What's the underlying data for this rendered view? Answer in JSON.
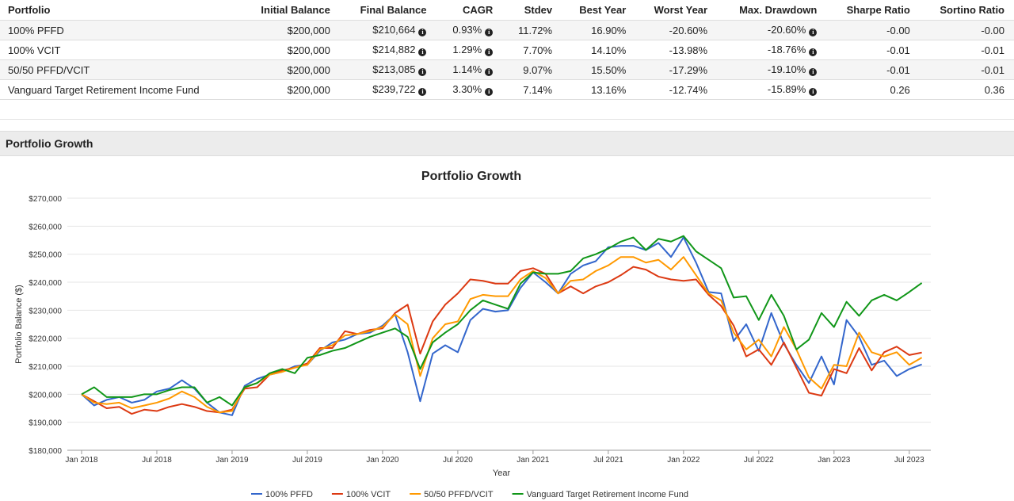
{
  "table": {
    "header": [
      "Portfolio",
      "Initial Balance",
      "Final Balance",
      "CAGR",
      "Stdev",
      "Best Year",
      "Worst Year",
      "Max. Drawdown",
      "Sharpe Ratio",
      "Sortino Ratio"
    ],
    "rows": [
      [
        "100% PFFD",
        "$200,000",
        "$210,664",
        "0.93%",
        "11.72%",
        "16.90%",
        "-20.60%",
        "-20.60%",
        "-0.00",
        "-0.00"
      ],
      [
        "100% VCIT",
        "$200,000",
        "$214,882",
        "1.29%",
        "7.70%",
        "14.10%",
        "-13.98%",
        "-18.76%",
        "-0.01",
        "-0.01"
      ],
      [
        "50/50 PFFD/VCIT",
        "$200,000",
        "$213,085",
        "1.14%",
        "9.07%",
        "15.50%",
        "-17.29%",
        "-19.10%",
        "-0.01",
        "-0.01"
      ],
      [
        "Vanguard Target Retirement Income Fund",
        "$200,000",
        "$239,722",
        "3.30%",
        "7.14%",
        "13.16%",
        "-12.74%",
        "-15.89%",
        "0.26",
        "0.36"
      ]
    ]
  },
  "section": {
    "title": "Portfolio Growth"
  },
  "chart_data": {
    "type": "line",
    "title": "Portfolio Growth",
    "x_label": "Year",
    "y_label": "Portfolio Balance ($)",
    "x": [
      "2018-01",
      "2018-02",
      "2018-03",
      "2018-04",
      "2018-05",
      "2018-06",
      "2018-07",
      "2018-08",
      "2018-09",
      "2018-10",
      "2018-11",
      "2018-12",
      "2019-01",
      "2019-02",
      "2019-03",
      "2019-04",
      "2019-05",
      "2019-06",
      "2019-07",
      "2019-08",
      "2019-09",
      "2019-10",
      "2019-11",
      "2019-12",
      "2020-01",
      "2020-02",
      "2020-03",
      "2020-04",
      "2020-05",
      "2020-06",
      "2020-07",
      "2020-08",
      "2020-09",
      "2020-10",
      "2020-11",
      "2020-12",
      "2021-01",
      "2021-02",
      "2021-03",
      "2021-04",
      "2021-05",
      "2021-06",
      "2021-07",
      "2021-08",
      "2021-09",
      "2021-10",
      "2021-11",
      "2021-12",
      "2022-01",
      "2022-02",
      "2022-03",
      "2022-04",
      "2022-05",
      "2022-06",
      "2022-07",
      "2022-08",
      "2022-09",
      "2022-10",
      "2022-11",
      "2022-12",
      "2023-01",
      "2023-02",
      "2023-03",
      "2023-04",
      "2023-05",
      "2023-06",
      "2023-07",
      "2023-08"
    ],
    "xticks": [
      {
        "value": "2018-01",
        "label": "Jan 2018"
      },
      {
        "value": "2018-07",
        "label": "Jul 2018"
      },
      {
        "value": "2019-01",
        "label": "Jan 2019"
      },
      {
        "value": "2019-07",
        "label": "Jul 2019"
      },
      {
        "value": "2020-01",
        "label": "Jan 2020"
      },
      {
        "value": "2020-07",
        "label": "Jul 2020"
      },
      {
        "value": "2021-01",
        "label": "Jan 2021"
      },
      {
        "value": "2021-07",
        "label": "Jul 2021"
      },
      {
        "value": "2022-01",
        "label": "Jan 2022"
      },
      {
        "value": "2022-07",
        "label": "Jul 2022"
      },
      {
        "value": "2023-01",
        "label": "Jan 2023"
      },
      {
        "value": "2023-07",
        "label": "Jul 2023"
      }
    ],
    "ylim": [
      180000,
      270000
    ],
    "yticks": [
      {
        "value": 180000,
        "label": "$180,000"
      },
      {
        "value": 190000,
        "label": "$190,000"
      },
      {
        "value": 200000,
        "label": "$200,000"
      },
      {
        "value": 210000,
        "label": "$210,000"
      },
      {
        "value": 220000,
        "label": "$220,000"
      },
      {
        "value": 230000,
        "label": "$230,000"
      },
      {
        "value": 240000,
        "label": "$240,000"
      },
      {
        "value": 250000,
        "label": "$250,000"
      },
      {
        "value": 260000,
        "label": "$260,000"
      },
      {
        "value": 270000,
        "label": "$270,000"
      }
    ],
    "grid": true,
    "legend": "bottom",
    "series": [
      {
        "name": "100% PFFD",
        "color": "#3366cc",
        "values": [
          200000,
          196000,
          198000,
          199000,
          197000,
          198000,
          201000,
          202000,
          205000,
          202000,
          197000,
          193500,
          192500,
          203000,
          205500,
          207000,
          208000,
          210000,
          210500,
          215500,
          218500,
          219500,
          221500,
          222000,
          224500,
          228500,
          215000,
          197500,
          214500,
          217500,
          215000,
          226500,
          230500,
          229500,
          230000,
          238000,
          243500,
          240000,
          236000,
          243000,
          246000,
          247500,
          252500,
          253000,
          253000,
          251500,
          254000,
          249000,
          256000,
          247000,
          236500,
          236000,
          219000,
          225000,
          215500,
          229000,
          218000,
          210500,
          204000,
          213500,
          203500,
          226500,
          220500,
          210500,
          212000,
          206500,
          209000,
          210664
        ]
      },
      {
        "name": "100% VCIT",
        "color": "#dc3912",
        "values": [
          200000,
          197500,
          195000,
          195500,
          193000,
          194500,
          194000,
          195500,
          196500,
          195500,
          194000,
          193500,
          194500,
          202000,
          202500,
          207000,
          208500,
          209500,
          211000,
          216500,
          216500,
          222500,
          221500,
          223000,
          223500,
          229000,
          232000,
          214500,
          226000,
          232000,
          236000,
          241000,
          240500,
          239500,
          239500,
          244000,
          245000,
          243000,
          236000,
          238500,
          236000,
          238500,
          240000,
          242500,
          245500,
          244500,
          242000,
          241000,
          240500,
          241000,
          235500,
          231500,
          224500,
          213500,
          216000,
          210500,
          218500,
          209500,
          200500,
          199500,
          209000,
          207500,
          216500,
          208500,
          215000,
          217000,
          214000,
          214882
        ]
      },
      {
        "name": "50/50 PFFD/VCIT",
        "color": "#ff9900",
        "values": [
          200000,
          197000,
          196500,
          197000,
          195000,
          196000,
          197000,
          198500,
          201000,
          199000,
          195500,
          193500,
          194000,
          202500,
          204000,
          207000,
          208000,
          209500,
          210500,
          216000,
          217500,
          221000,
          221500,
          222500,
          224000,
          228500,
          225000,
          206500,
          220000,
          225000,
          226000,
          234000,
          235500,
          235000,
          235000,
          241000,
          244000,
          241500,
          236000,
          240500,
          241000,
          244000,
          246000,
          249000,
          249000,
          247000,
          248000,
          244500,
          249000,
          242500,
          236000,
          233500,
          222000,
          216000,
          219500,
          213500,
          224000,
          216000,
          206000,
          202000,
          210500,
          210000,
          222000,
          215000,
          213500,
          215000,
          210500,
          213085
        ]
      },
      {
        "name": "Vanguard Target Retirement Income Fund",
        "color": "#109618",
        "values": [
          200000,
          202500,
          199000,
          199000,
          199000,
          200000,
          200000,
          201500,
          202500,
          202500,
          197000,
          199000,
          196000,
          202500,
          204000,
          207500,
          209000,
          207500,
          213000,
          214000,
          215500,
          216500,
          218500,
          220500,
          222000,
          223500,
          220500,
          209000,
          218500,
          222000,
          225000,
          230000,
          233500,
          232000,
          230500,
          239500,
          243500,
          243000,
          243000,
          244000,
          248500,
          250000,
          252000,
          254500,
          256000,
          251500,
          255500,
          254500,
          256500,
          251000,
          248000,
          245000,
          234500,
          235000,
          226500,
          235500,
          228000,
          216000,
          219500,
          229000,
          224000,
          233000,
          228000,
          233500,
          235500,
          233500,
          236500,
          239722
        ]
      }
    ]
  }
}
